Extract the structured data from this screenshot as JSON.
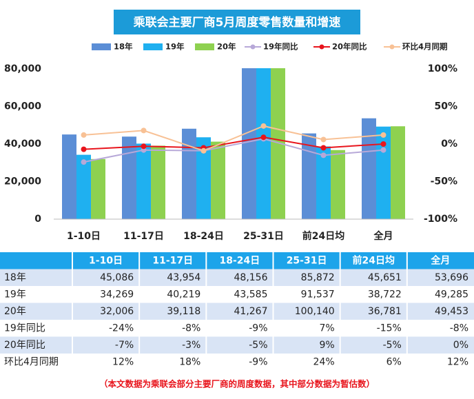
{
  "chart_data": {
    "type": "bar-line-table",
    "title": "乘联会主要厂商5月周度零售数量和增速",
    "categories": [
      "1-10日",
      "11-17日",
      "18-24日",
      "25-31日",
      "前24日均",
      "全月"
    ],
    "series": [
      {
        "name": "18年",
        "color": "#5b8ed6",
        "values": [
          45086,
          43954,
          48156,
          85872,
          45651,
          53696
        ],
        "value_labels": [
          "45,086",
          "43,954",
          "48,156",
          "85,872",
          "45,651",
          "53,696"
        ]
      },
      {
        "name": "19年",
        "color": "#1fb0f0",
        "values": [
          34269,
          40219,
          43585,
          91537,
          38722,
          49285
        ],
        "value_labels": [
          "34,269",
          "40,219",
          "43,585",
          "91,537",
          "38,722",
          "49,285"
        ]
      },
      {
        "name": "20年",
        "color": "#8ed150",
        "values": [
          32006,
          39118,
          41267,
          100140,
          36781,
          49453
        ],
        "value_labels": [
          "32,006",
          "39,118",
          "41,267",
          "100,140",
          "36,781",
          "49,453"
        ]
      },
      {
        "name": "19年同比",
        "color": "#b7a8d8",
        "axis": "y2",
        "values": [
          -24,
          -8,
          -9,
          7,
          -15,
          -8
        ],
        "value_labels": [
          "-24%",
          "-8%",
          "-9%",
          "7%",
          "-15%",
          "-8%"
        ]
      },
      {
        "name": "20年同比",
        "color": "#e8141c",
        "axis": "y2",
        "values": [
          -7,
          -3,
          -5,
          9,
          -5,
          0
        ],
        "value_labels": [
          "-7%",
          "-3%",
          "-5%",
          "9%",
          "-5%",
          "0%"
        ]
      },
      {
        "name": "环比4月同期",
        "color": "#f8c195",
        "axis": "y2",
        "values": [
          12,
          18,
          -9,
          24,
          6,
          12
        ],
        "value_labels": [
          "12%",
          "18%",
          "-9%",
          "24%",
          "6%",
          "12%"
        ]
      }
    ],
    "ylim": [
      0,
      80000
    ],
    "yticks": [
      0,
      {
        "value": 20000,
        "label": "20,000"
      },
      {
        "value": 40000,
        "label": "40,000"
      },
      {
        "value": 60000,
        "label": "60,000"
      },
      {
        "value": 80000,
        "label": "80,000"
      }
    ],
    "y2lim": [
      -100,
      100
    ],
    "y2ticks": [
      {
        "value": -100,
        "label": "-100%"
      },
      {
        "value": -50,
        "label": "-50%"
      },
      {
        "value": 0,
        "label": "0%"
      },
      {
        "value": 50,
        "label": "50%"
      },
      {
        "value": 100,
        "label": "100%"
      }
    ],
    "note": "（本文数据为乘联会部分主要厂商的周度数据，其中部分数据为暂估数）"
  }
}
